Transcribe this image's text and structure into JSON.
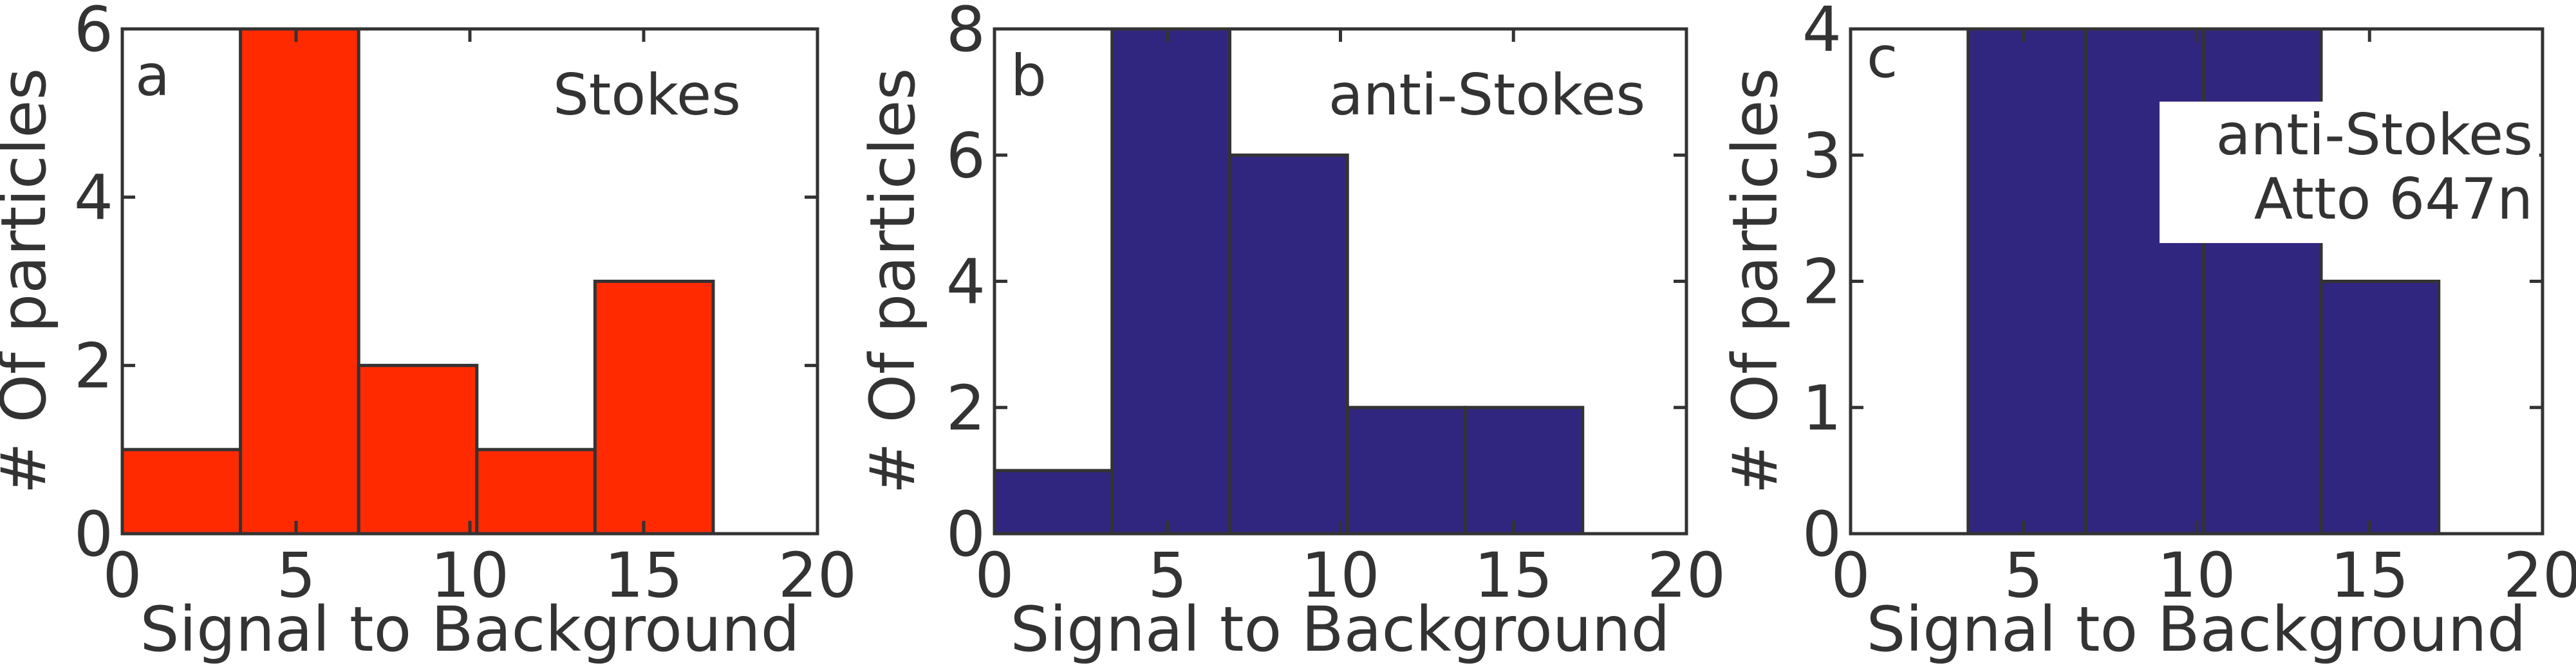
{
  "chart_data": [
    {
      "type": "bar",
      "panel_label": "a",
      "annotation": [
        "Stokes"
      ],
      "color": "#ff2a00",
      "bins": [
        [
          0,
          3.4
        ],
        [
          3.4,
          6.8
        ],
        [
          6.8,
          10.2
        ],
        [
          10.2,
          13.6
        ],
        [
          13.6,
          17.0
        ]
      ],
      "values": [
        1,
        6,
        2,
        1,
        3
      ],
      "xlabel": "Signal to Background",
      "ylabel": "# Of particles",
      "xlim": [
        0,
        20
      ],
      "ylim": [
        0,
        6
      ],
      "xticks": [
        0,
        5,
        10,
        15,
        20
      ],
      "yticks": [
        0,
        2,
        4,
        6
      ]
    },
    {
      "type": "bar",
      "panel_label": "b",
      "annotation": [
        "anti-Stokes"
      ],
      "color": "#31267f",
      "bins": [
        [
          0,
          3.4
        ],
        [
          3.4,
          6.8
        ],
        [
          6.8,
          10.2
        ],
        [
          10.2,
          13.6
        ],
        [
          13.6,
          17.0
        ]
      ],
      "values": [
        1,
        8,
        6,
        2,
        2
      ],
      "xlabel": "Signal to Background",
      "ylabel": "# Of particles",
      "xlim": [
        0,
        20
      ],
      "ylim": [
        0,
        8
      ],
      "xticks": [
        0,
        5,
        10,
        15,
        20
      ],
      "yticks": [
        0,
        2,
        4,
        6,
        8
      ]
    },
    {
      "type": "bar",
      "panel_label": "c",
      "annotation": [
        "anti-Stokes",
        "Atto 647n"
      ],
      "color": "#31267f",
      "bins": [
        [
          3.4,
          6.8
        ],
        [
          6.8,
          10.2
        ],
        [
          10.2,
          13.6
        ],
        [
          13.6,
          17.0
        ]
      ],
      "values": [
        4,
        4,
        4,
        2
      ],
      "xlabel": "Signal to Background",
      "ylabel": "# Of particles",
      "xlim": [
        0,
        20
      ],
      "ylim": [
        0,
        4
      ],
      "xticks": [
        0,
        5,
        10,
        15,
        20
      ],
      "yticks": [
        0,
        1,
        2,
        3,
        4
      ]
    }
  ]
}
